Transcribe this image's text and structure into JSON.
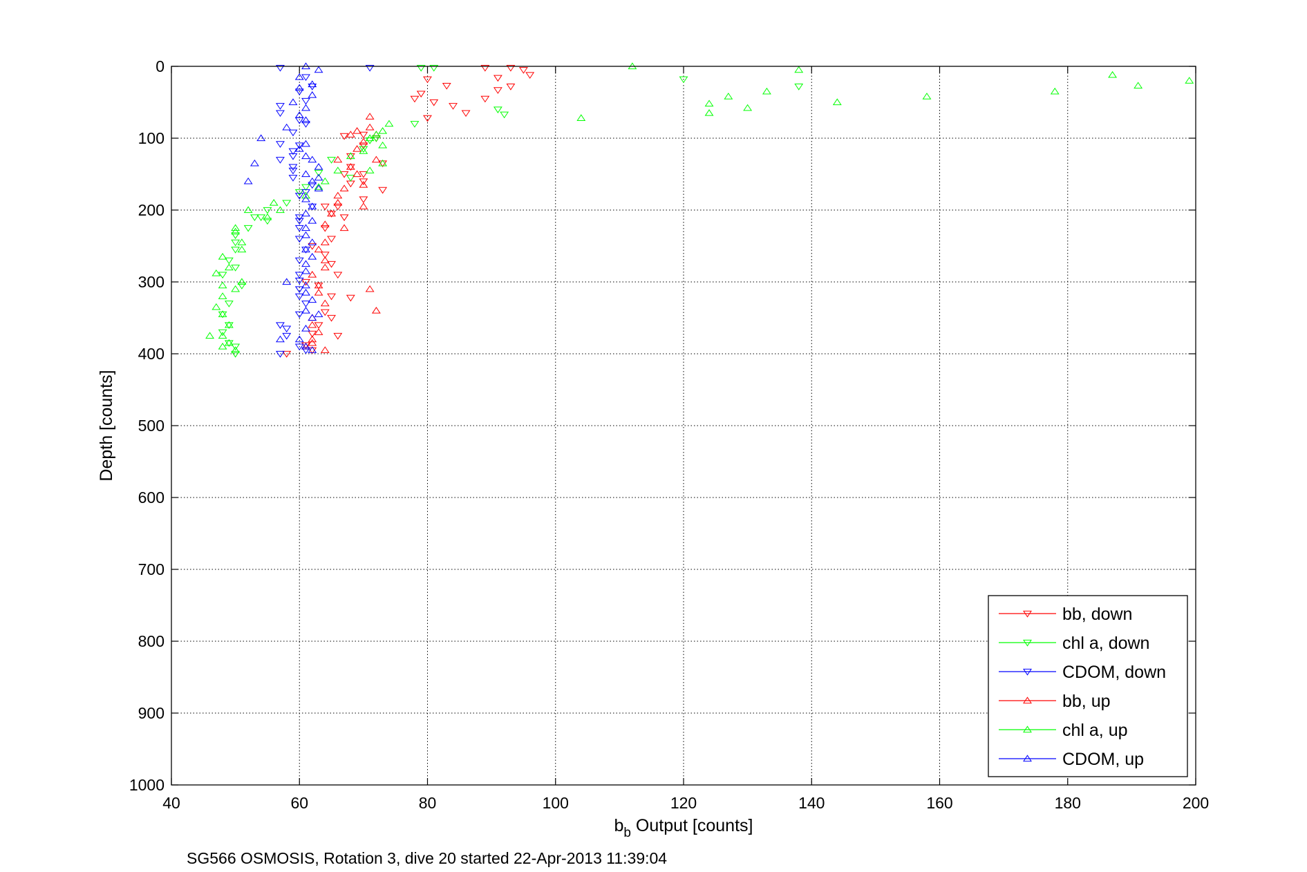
{
  "chart_data": {
    "type": "scatter",
    "xlabel": "b",
    "xlabel_subscript": "b",
    "xlabel_suffix": " Output [counts]",
    "ylabel": "Depth [counts]",
    "caption": "SG566 OSMOSIS, Rotation 3, dive 20 started 22-Apr-2013 11:39:04",
    "xlim": [
      40,
      200
    ],
    "ylim": [
      0,
      1000
    ],
    "y_reversed": true,
    "grid": true,
    "legend_position": "bottom-right",
    "x_ticks": [
      40,
      60,
      80,
      100,
      120,
      140,
      160,
      180,
      200
    ],
    "y_ticks": [
      0,
      100,
      200,
      300,
      400,
      500,
      600,
      700,
      800,
      900,
      1000
    ],
    "series": [
      {
        "name": "bb, down",
        "color": "#ff0000",
        "marker": "triangle-down",
        "points": [
          [
            89,
            2
          ],
          [
            93,
            2
          ],
          [
            95,
            5
          ],
          [
            96,
            12
          ],
          [
            91,
            16
          ],
          [
            80,
            18
          ],
          [
            93,
            28
          ],
          [
            83,
            27
          ],
          [
            91,
            33
          ],
          [
            79,
            38
          ],
          [
            78,
            45
          ],
          [
            89,
            45
          ],
          [
            81,
            50
          ],
          [
            84,
            55
          ],
          [
            86,
            65
          ],
          [
            80,
            72
          ],
          [
            70,
            95
          ],
          [
            67,
            97
          ],
          [
            72,
            100
          ],
          [
            70,
            110
          ],
          [
            68,
            125
          ],
          [
            68,
            140
          ],
          [
            73,
            135
          ],
          [
            67,
            150
          ],
          [
            70,
            150
          ],
          [
            70,
            160
          ],
          [
            68,
            163
          ],
          [
            73,
            172
          ],
          [
            70,
            185
          ],
          [
            64,
            195
          ],
          [
            66,
            195
          ],
          [
            65,
            205
          ],
          [
            67,
            210
          ],
          [
            64,
            225
          ],
          [
            65,
            240
          ],
          [
            62,
            250
          ],
          [
            64,
            262
          ],
          [
            65,
            275
          ],
          [
            66,
            290
          ],
          [
            61,
            300
          ],
          [
            63,
            305
          ],
          [
            65,
            320
          ],
          [
            68,
            322
          ],
          [
            64,
            342
          ],
          [
            65,
            350
          ],
          [
            63,
            360
          ],
          [
            62,
            372
          ],
          [
            66,
            375
          ],
          [
            61,
            388
          ],
          [
            62,
            395
          ],
          [
            58,
            400
          ]
        ]
      },
      {
        "name": "chl a, down",
        "color": "#00ff00",
        "marker": "triangle-down",
        "points": [
          [
            79,
            2
          ],
          [
            81,
            2
          ],
          [
            120,
            18
          ],
          [
            138,
            28
          ],
          [
            91,
            60
          ],
          [
            92,
            67
          ],
          [
            78,
            80
          ],
          [
            72,
            100
          ],
          [
            71,
            103
          ],
          [
            70,
            115
          ],
          [
            65,
            130
          ],
          [
            63,
            148
          ],
          [
            68,
            155
          ],
          [
            61,
            168
          ],
          [
            60,
            175
          ],
          [
            58,
            190
          ],
          [
            55,
            200
          ],
          [
            53,
            210
          ],
          [
            54,
            210
          ],
          [
            55,
            215
          ],
          [
            52,
            225
          ],
          [
            50,
            235
          ],
          [
            50,
            245
          ],
          [
            50,
            255
          ],
          [
            49,
            270
          ],
          [
            50,
            280
          ],
          [
            48,
            290
          ],
          [
            51,
            305
          ],
          [
            49,
            330
          ],
          [
            48,
            345
          ],
          [
            49,
            360
          ],
          [
            48,
            370
          ],
          [
            49,
            385
          ],
          [
            50,
            390
          ],
          [
            50,
            400
          ]
        ]
      },
      {
        "name": "CDOM, down",
        "color": "#0000ff",
        "marker": "triangle-down",
        "points": [
          [
            57,
            2
          ],
          [
            71,
            2
          ],
          [
            61,
            15
          ],
          [
            62,
            28
          ],
          [
            60,
            35
          ],
          [
            61,
            48
          ],
          [
            57,
            55
          ],
          [
            57,
            65
          ],
          [
            60,
            75
          ],
          [
            61,
            80
          ],
          [
            59,
            92
          ],
          [
            57,
            108
          ],
          [
            60,
            110
          ],
          [
            59,
            118
          ],
          [
            59,
            125
          ],
          [
            57,
            130
          ],
          [
            59,
            140
          ],
          [
            59,
            145
          ],
          [
            59,
            155
          ],
          [
            62,
            165
          ],
          [
            61,
            175
          ],
          [
            60,
            180
          ],
          [
            62,
            195
          ],
          [
            60,
            210
          ],
          [
            60,
            215
          ],
          [
            60,
            225
          ],
          [
            60,
            240
          ],
          [
            61,
            255
          ],
          [
            60,
            270
          ],
          [
            60,
            290
          ],
          [
            60,
            298
          ],
          [
            60,
            310
          ],
          [
            60,
            320
          ],
          [
            61,
            330
          ],
          [
            60,
            345
          ],
          [
            57,
            360
          ],
          [
            58,
            365
          ],
          [
            58,
            375
          ],
          [
            60,
            390
          ],
          [
            61,
            395
          ],
          [
            57,
            400
          ]
        ]
      },
      {
        "name": "bb, up",
        "color": "#ff0000",
        "marker": "triangle-up",
        "points": [
          [
            71,
            70
          ],
          [
            71,
            85
          ],
          [
            68,
            95
          ],
          [
            69,
            90
          ],
          [
            72,
            95
          ],
          [
            70,
            105
          ],
          [
            69,
            115
          ],
          [
            66,
            130
          ],
          [
            72,
            130
          ],
          [
            68,
            140
          ],
          [
            69,
            150
          ],
          [
            70,
            165
          ],
          [
            67,
            170
          ],
          [
            66,
            180
          ],
          [
            66,
            190
          ],
          [
            70,
            195
          ],
          [
            65,
            205
          ],
          [
            64,
            220
          ],
          [
            67,
            225
          ],
          [
            64,
            245
          ],
          [
            63,
            255
          ],
          [
            64,
            270
          ],
          [
            64,
            280
          ],
          [
            62,
            290
          ],
          [
            63,
            305
          ],
          [
            63,
            315
          ],
          [
            64,
            330
          ],
          [
            71,
            310
          ],
          [
            72,
            340
          ],
          [
            62,
            350
          ],
          [
            62,
            360
          ],
          [
            63,
            370
          ],
          [
            62,
            380
          ],
          [
            62,
            385
          ],
          [
            64,
            395
          ],
          [
            61,
            390
          ]
        ]
      },
      {
        "name": "chl a, up",
        "color": "#00ff00",
        "marker": "triangle-up",
        "points": [
          [
            112,
            0
          ],
          [
            138,
            5
          ],
          [
            199,
            20
          ],
          [
            187,
            12
          ],
          [
            191,
            27
          ],
          [
            178,
            35
          ],
          [
            133,
            35
          ],
          [
            127,
            42
          ],
          [
            158,
            42
          ],
          [
            144,
            50
          ],
          [
            124,
            52
          ],
          [
            124,
            65
          ],
          [
            130,
            58
          ],
          [
            104,
            72
          ],
          [
            74,
            80
          ],
          [
            73,
            90
          ],
          [
            72,
            95
          ],
          [
            71,
            100
          ],
          [
            73,
            110
          ],
          [
            70,
            118
          ],
          [
            68,
            125
          ],
          [
            73,
            135
          ],
          [
            71,
            145
          ],
          [
            66,
            145
          ],
          [
            64,
            160
          ],
          [
            63,
            168
          ],
          [
            61,
            180
          ],
          [
            56,
            190
          ],
          [
            57,
            200
          ],
          [
            55,
            210
          ],
          [
            52,
            200
          ],
          [
            50,
            225
          ],
          [
            50,
            230
          ],
          [
            51,
            245
          ],
          [
            51,
            255
          ],
          [
            48,
            265
          ],
          [
            49,
            280
          ],
          [
            51,
            300
          ],
          [
            50,
            310
          ],
          [
            48,
            305
          ],
          [
            47,
            288
          ],
          [
            48,
            320
          ],
          [
            47,
            335
          ],
          [
            48,
            345
          ],
          [
            49,
            360
          ],
          [
            48,
            375
          ],
          [
            46,
            375
          ],
          [
            49,
            385
          ],
          [
            48,
            390
          ],
          [
            50,
            395
          ]
        ]
      },
      {
        "name": "CDOM, up",
        "color": "#0000ff",
        "marker": "triangle-up",
        "points": [
          [
            61,
            0
          ],
          [
            63,
            5
          ],
          [
            60,
            15
          ],
          [
            62,
            25
          ],
          [
            60,
            30
          ],
          [
            62,
            40
          ],
          [
            59,
            50
          ],
          [
            61,
            58
          ],
          [
            60,
            68
          ],
          [
            61,
            75
          ],
          [
            58,
            85
          ],
          [
            54,
            100
          ],
          [
            61,
            108
          ],
          [
            60,
            115
          ],
          [
            53,
            135
          ],
          [
            52,
            160
          ],
          [
            61,
            125
          ],
          [
            62,
            130
          ],
          [
            63,
            140
          ],
          [
            61,
            150
          ],
          [
            63,
            155
          ],
          [
            62,
            160
          ],
          [
            63,
            170
          ],
          [
            61,
            185
          ],
          [
            62,
            195
          ],
          [
            61,
            205
          ],
          [
            62,
            215
          ],
          [
            61,
            225
          ],
          [
            61,
            235
          ],
          [
            62,
            245
          ],
          [
            61,
            255
          ],
          [
            62,
            265
          ],
          [
            61,
            275
          ],
          [
            61,
            285
          ],
          [
            58,
            300
          ],
          [
            61,
            305
          ],
          [
            61,
            315
          ],
          [
            62,
            325
          ],
          [
            61,
            340
          ],
          [
            62,
            350
          ],
          [
            63,
            345
          ],
          [
            61,
            365
          ],
          [
            60,
            380
          ],
          [
            61,
            390
          ],
          [
            62,
            395
          ],
          [
            57,
            380
          ]
        ]
      }
    ]
  }
}
